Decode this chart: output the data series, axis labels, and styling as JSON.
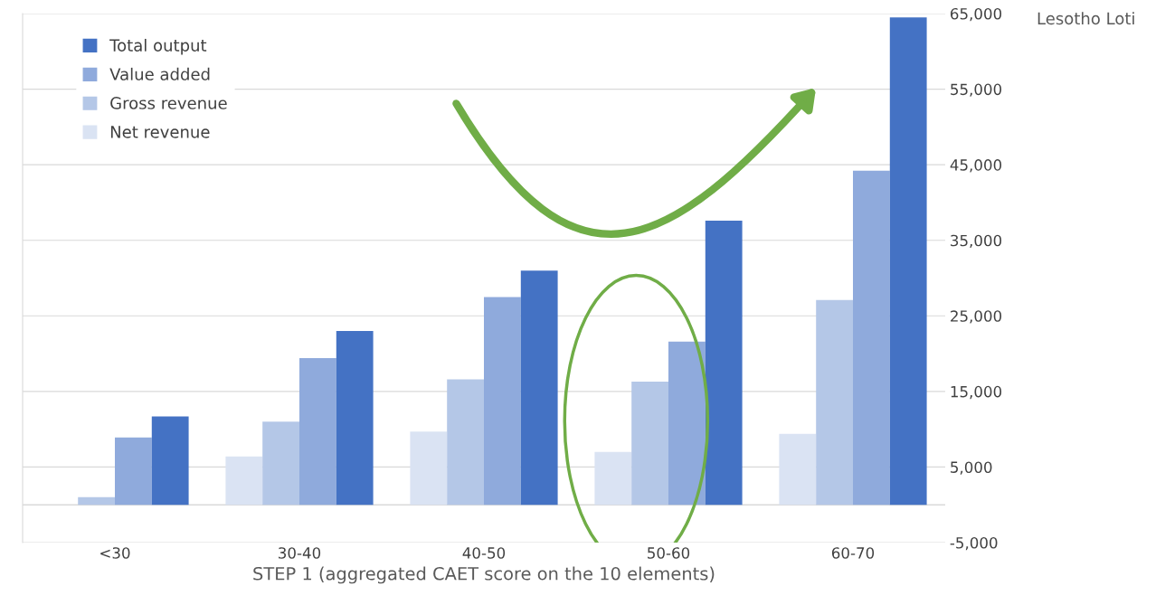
{
  "chart_data": {
    "type": "bar",
    "ylabel": "Lesotho Loti",
    "xlabel": "STEP 1 (aggregated CAET score on the 10 elements)",
    "categories": [
      "<30",
      "30-40",
      "40-50",
      "50-60",
      "60-70"
    ],
    "series": [
      {
        "name": "Net revenue",
        "color": "#dae3f3",
        "values": [
          null,
          6400,
          9700,
          7000,
          9400
        ]
      },
      {
        "name": "Gross revenue",
        "color": "#b4c7e7",
        "values": [
          1000,
          11000,
          16600,
          16300,
          27100
        ]
      },
      {
        "name": "Value added",
        "color": "#8faadc",
        "values": [
          8900,
          19400,
          27500,
          21600,
          44200
        ]
      },
      {
        "name": "Total output",
        "color": "#4472c4",
        "values": [
          11700,
          23000,
          31000,
          37600,
          64500
        ]
      }
    ],
    "ylim": [
      -5000,
      65000
    ],
    "yticks": [
      {
        "value": -5000,
        "label": "-5,000"
      },
      {
        "value": 5000,
        "label": "5,000"
      },
      {
        "value": 15000,
        "label": "15,000"
      },
      {
        "value": 25000,
        "label": "25,000"
      },
      {
        "value": 35000,
        "label": "35,000"
      },
      {
        "value": 45000,
        "label": "45,000"
      },
      {
        "value": 55000,
        "label": "55,000"
      },
      {
        "value": 65000,
        "label": "65,000"
      }
    ],
    "grid": "y",
    "legend": "top left"
  }
}
